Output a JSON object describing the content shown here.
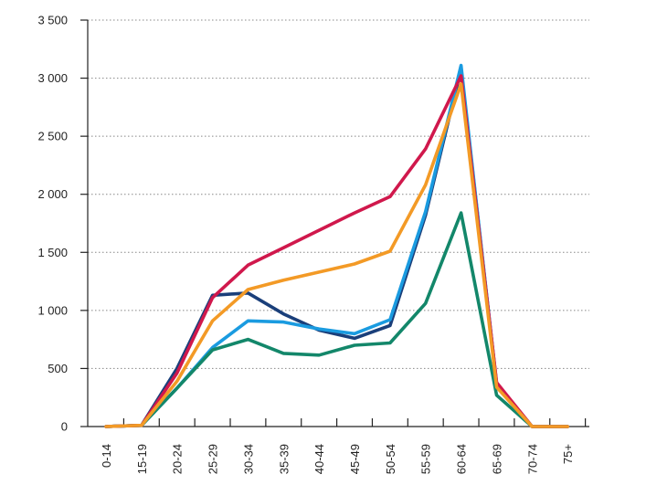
{
  "chart_data": {
    "type": "line",
    "title": "",
    "xlabel": "",
    "ylabel": "",
    "ylim": [
      0,
      3500
    ],
    "yticks": [
      0,
      500,
      1000,
      1500,
      2000,
      2500,
      3000,
      3500
    ],
    "ytick_labels": [
      "0",
      "500",
      "1 000",
      "1 500",
      "2 000",
      "2 500",
      "3 000",
      "3 500"
    ],
    "grid": true,
    "legend": "none",
    "categories": [
      "0-14",
      "15-19",
      "20-24",
      "25-29",
      "30-34",
      "35-39",
      "40-44",
      "45-49",
      "50-54",
      "55-59",
      "60-64",
      "65-69",
      "70-74",
      "75+"
    ],
    "series": [
      {
        "name": "navy",
        "color": "#1a3f7a",
        "values": [
          0,
          10,
          500,
          1130,
          1150,
          970,
          830,
          760,
          870,
          1820,
          3080,
          370,
          0,
          0
        ]
      },
      {
        "name": "light blue",
        "color": "#1a9be0",
        "values": [
          0,
          10,
          330,
          680,
          910,
          900,
          840,
          800,
          920,
          1850,
          3110,
          360,
          0,
          0
        ]
      },
      {
        "name": "green",
        "color": "#13876a",
        "values": [
          0,
          10,
          330,
          660,
          750,
          630,
          615,
          700,
          720,
          1060,
          1840,
          270,
          0,
          0
        ]
      },
      {
        "name": "red",
        "color": "#d0184c",
        "values": [
          0,
          10,
          460,
          1110,
          1390,
          1540,
          1690,
          1840,
          1980,
          2390,
          3020,
          380,
          0,
          0
        ]
      },
      {
        "name": "orange",
        "color": "#f39a26",
        "values": [
          0,
          10,
          390,
          910,
          1180,
          1260,
          1330,
          1400,
          1510,
          2080,
          2950,
          340,
          0,
          0
        ]
      }
    ]
  }
}
